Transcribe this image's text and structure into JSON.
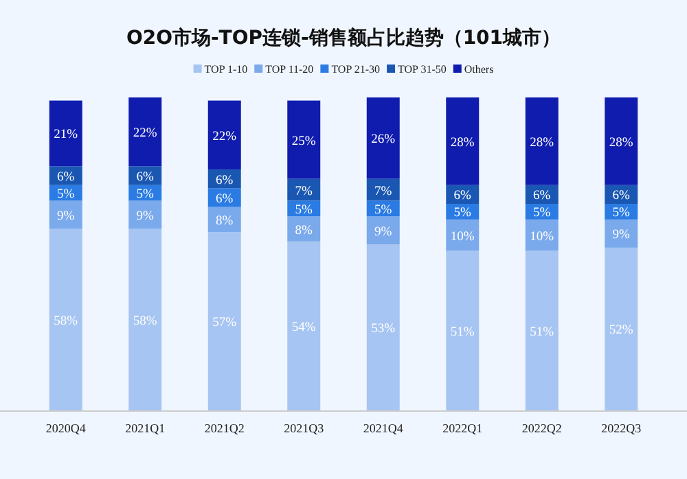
{
  "chart_data": {
    "type": "bar",
    "title": "O2O市场-TOP连锁-销售额占比趋势（101城市）",
    "stacked": true,
    "legend": "top",
    "ylim": [
      0,
      100
    ],
    "tick_labels": "x",
    "categories": [
      "2020Q4",
      "2021Q1",
      "2021Q2",
      "2021Q3",
      "2021Q4",
      "2022Q1",
      "2022Q2",
      "2022Q3"
    ],
    "series": [
      {
        "name": "TOP 1-10",
        "color": "#a7c5f2",
        "values": [
          58,
          58,
          57,
          54,
          53,
          51,
          51,
          52
        ],
        "value_labels": [
          "58%",
          "58%",
          "57%",
          "54%",
          "53%",
          "51%",
          "51%",
          "52%"
        ]
      },
      {
        "name": "TOP 11-20",
        "color": "#7aa9ec",
        "values": [
          9,
          9,
          8,
          8,
          9,
          10,
          10,
          9
        ],
        "value_labels": [
          "9%",
          "9%",
          "8%",
          "8%",
          "9%",
          "10%",
          "10%",
          "9%"
        ]
      },
      {
        "name": "TOP 21-30",
        "color": "#2a7be3",
        "values": [
          5,
          5,
          6,
          5,
          5,
          5,
          5,
          5
        ],
        "value_labels": [
          "5%",
          "5%",
          "6%",
          "5%",
          "5%",
          "5%",
          "5%",
          "5%"
        ]
      },
      {
        "name": "TOP 31-50",
        "color": "#1a57b2",
        "values": [
          6,
          6,
          6,
          7,
          7,
          6,
          6,
          6
        ],
        "value_labels": [
          "6%",
          "6%",
          "6%",
          "7%",
          "7%",
          "6%",
          "6%",
          "6%"
        ]
      },
      {
        "name": "Others",
        "color": "#0f1cae",
        "values": [
          21,
          22,
          22,
          25,
          26,
          28,
          28,
          28
        ],
        "value_labels": [
          "21%",
          "22%",
          "22%",
          "25%",
          "26%",
          "28%",
          "28%",
          "28%"
        ]
      }
    ]
  }
}
